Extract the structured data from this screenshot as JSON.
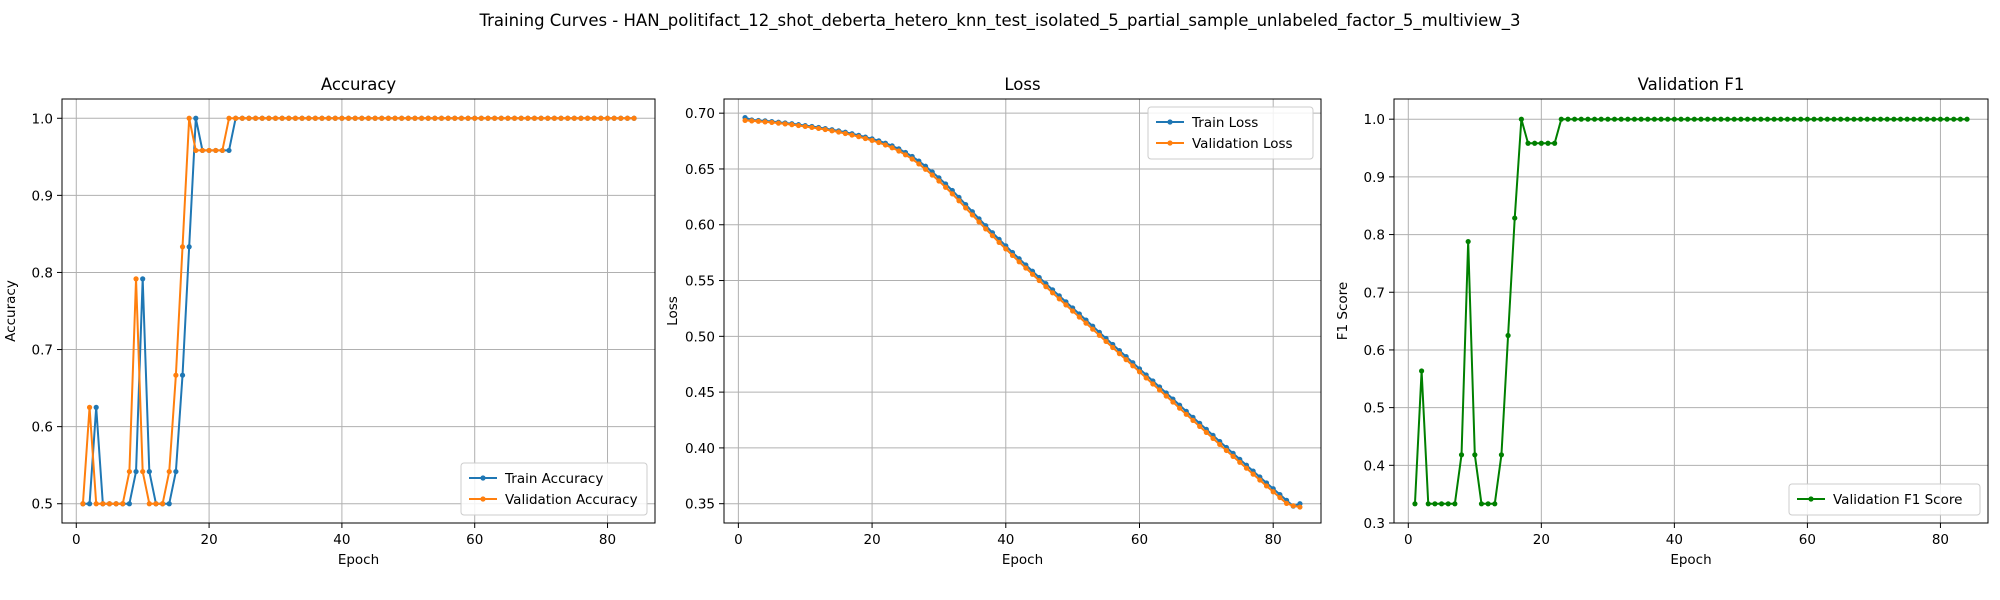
{
  "figure": {
    "suptitle": "Training Curves - HAN_politifact_12_shot_deberta_hetero_knn_test_isolated_5_partial_sample_unlabeled_factor_5_multiview_3"
  },
  "colors": {
    "blue": "#1f77b4",
    "orange": "#ff7f0e",
    "green": "#008000",
    "grid": "#b0b0b0"
  },
  "chart_data": [
    {
      "type": "line",
      "title": "Accuracy",
      "xlabel": "Epoch",
      "ylabel": "Accuracy",
      "xlim": [
        -2.15,
        87.15
      ],
      "ylim": [
        0.475,
        1.025
      ],
      "xticks": [
        0,
        20,
        40,
        60,
        80
      ],
      "yticks": [
        0.5,
        0.6,
        0.7,
        0.8,
        0.9,
        1.0
      ],
      "ytick_labels": [
        "0.5",
        "0.6",
        "0.7",
        "0.8",
        "0.9",
        "1.0"
      ],
      "grid": true,
      "legend_position": "lower-right",
      "series": [
        {
          "name": "Train Accuracy",
          "color": "#1f77b4",
          "values": [
            0.5,
            0.5,
            0.625,
            0.5,
            0.5,
            0.5,
            0.5,
            0.5,
            0.5417,
            0.7917,
            0.5417,
            0.5,
            0.5,
            0.5,
            0.5417,
            0.6667,
            0.8333,
            1.0,
            0.9583,
            0.9583,
            0.9583,
            0.9583,
            0.9583,
            1.0,
            1.0,
            1.0,
            1.0,
            1.0,
            1.0,
            1.0,
            1.0,
            1.0,
            1.0,
            1.0,
            1.0,
            1.0,
            1.0,
            1.0,
            1.0,
            1.0,
            1.0,
            1.0,
            1.0,
            1.0,
            1.0,
            1.0,
            1.0,
            1.0,
            1.0,
            1.0,
            1.0,
            1.0,
            1.0,
            1.0,
            1.0,
            1.0,
            1.0,
            1.0,
            1.0,
            1.0,
            1.0,
            1.0,
            1.0,
            1.0,
            1.0,
            1.0,
            1.0,
            1.0,
            1.0,
            1.0,
            1.0,
            1.0,
            1.0,
            1.0,
            1.0,
            1.0,
            1.0,
            1.0,
            1.0,
            1.0,
            1.0,
            1.0,
            1.0,
            1.0
          ]
        },
        {
          "name": "Validation Accuracy",
          "color": "#ff7f0e",
          "values": [
            0.5,
            0.625,
            0.5,
            0.5,
            0.5,
            0.5,
            0.5,
            0.5417,
            0.7917,
            0.5417,
            0.5,
            0.5,
            0.5,
            0.5417,
            0.6667,
            0.8333,
            1.0,
            0.9583,
            0.9583,
            0.9583,
            0.9583,
            0.9583,
            1.0,
            1.0,
            1.0,
            1.0,
            1.0,
            1.0,
            1.0,
            1.0,
            1.0,
            1.0,
            1.0,
            1.0,
            1.0,
            1.0,
            1.0,
            1.0,
            1.0,
            1.0,
            1.0,
            1.0,
            1.0,
            1.0,
            1.0,
            1.0,
            1.0,
            1.0,
            1.0,
            1.0,
            1.0,
            1.0,
            1.0,
            1.0,
            1.0,
            1.0,
            1.0,
            1.0,
            1.0,
            1.0,
            1.0,
            1.0,
            1.0,
            1.0,
            1.0,
            1.0,
            1.0,
            1.0,
            1.0,
            1.0,
            1.0,
            1.0,
            1.0,
            1.0,
            1.0,
            1.0,
            1.0,
            1.0,
            1.0,
            1.0,
            1.0,
            1.0,
            1.0,
            1.0
          ]
        }
      ]
    },
    {
      "type": "line",
      "title": "Loss",
      "xlabel": "Epoch",
      "ylabel": "Loss",
      "xlim": [
        -2.15,
        87.15
      ],
      "ylim": [
        0.3327,
        0.7127
      ],
      "xticks": [
        0,
        20,
        40,
        60,
        80
      ],
      "yticks": [
        0.35,
        0.4,
        0.45,
        0.5,
        0.55,
        0.6,
        0.65,
        0.7
      ],
      "ytick_labels": [
        "0.35",
        "0.40",
        "0.45",
        "0.50",
        "0.55",
        "0.60",
        "0.65",
        "0.70"
      ],
      "grid": true,
      "legend_position": "upper-right",
      "series": [
        {
          "name": "Train Loss",
          "color": "#1f77b4",
          "values": [
            0.696,
            0.6939,
            0.6935,
            0.6931,
            0.6925,
            0.6919,
            0.6912,
            0.6905,
            0.6897,
            0.6889,
            0.6881,
            0.6872,
            0.6862,
            0.6852,
            0.6841,
            0.6829,
            0.6816,
            0.6801,
            0.6786,
            0.677,
            0.6752,
            0.6731,
            0.6707,
            0.668,
            0.6648,
            0.6612,
            0.657,
            0.6524,
            0.6473,
            0.642,
            0.6365,
            0.6307,
            0.6245,
            0.6181,
            0.6117,
            0.6053,
            0.5991,
            0.5929,
            0.5869,
            0.5811,
            0.5752,
            0.5695,
            0.5639,
            0.5583,
            0.5527,
            0.5472,
            0.5417,
            0.5363,
            0.5309,
            0.5254,
            0.52,
            0.5145,
            0.5091,
            0.5036,
            0.4981,
            0.4927,
            0.4872,
            0.4818,
            0.4763,
            0.4709,
            0.4654,
            0.46,
            0.4546,
            0.4492,
            0.4438,
            0.4383,
            0.4328,
            0.4274,
            0.422,
            0.4166,
            0.4112,
            0.4058,
            0.4004,
            0.3951,
            0.3898,
            0.3845,
            0.3792,
            0.3739,
            0.3686,
            0.3634,
            0.3582,
            0.353,
            0.3478,
            0.35
          ]
        },
        {
          "name": "Validation Loss",
          "color": "#ff7f0e",
          "values": [
            0.6935,
            0.6931,
            0.6927,
            0.6922,
            0.6917,
            0.6911,
            0.6904,
            0.6897,
            0.6889,
            0.6881,
            0.6872,
            0.6863,
            0.6853,
            0.6842,
            0.6831,
            0.6818,
            0.6804,
            0.6789,
            0.6773,
            0.6756,
            0.6737,
            0.6715,
            0.669,
            0.6661,
            0.6627,
            0.6589,
            0.6545,
            0.6497,
            0.6446,
            0.6392,
            0.6336,
            0.6277,
            0.6215,
            0.6151,
            0.6088,
            0.6025,
            0.5963,
            0.5902,
            0.5842,
            0.5784,
            0.5725,
            0.5668,
            0.5612,
            0.5556,
            0.55,
            0.5445,
            0.539,
            0.5336,
            0.5282,
            0.5227,
            0.5173,
            0.5118,
            0.5064,
            0.5009,
            0.4954,
            0.49,
            0.4845,
            0.4791,
            0.4736,
            0.4682,
            0.4627,
            0.4573,
            0.4519,
            0.4465,
            0.4411,
            0.4356,
            0.4301,
            0.4247,
            0.4193,
            0.4139,
            0.4085,
            0.4031,
            0.3977,
            0.3924,
            0.3871,
            0.3818,
            0.3765,
            0.3712,
            0.3659,
            0.3607,
            0.3555,
            0.3503,
            0.3481,
            0.347
          ]
        }
      ]
    },
    {
      "type": "line",
      "title": "Validation F1",
      "xlabel": "Epoch",
      "ylabel": "F1 Score",
      "xlim": [
        -2.15,
        87.15
      ],
      "ylim": [
        0.3,
        1.035
      ],
      "xticks": [
        0,
        20,
        40,
        60,
        80
      ],
      "yticks": [
        0.3,
        0.4,
        0.5,
        0.6,
        0.7,
        0.8,
        0.9,
        1.0
      ],
      "ytick_labels": [
        "0.3",
        "0.4",
        "0.5",
        "0.6",
        "0.7",
        "0.8",
        "0.9",
        "1.0"
      ],
      "grid": true,
      "legend_position": "lower-right",
      "series": [
        {
          "name": "Validation F1 Score",
          "color": "#008000",
          "values": [
            0.3333,
            0.5636,
            0.3333,
            0.3333,
            0.3333,
            0.3333,
            0.3333,
            0.4182,
            0.7879,
            0.4182,
            0.3333,
            0.3333,
            0.3333,
            0.4182,
            0.625,
            0.8286,
            1.0,
            0.9583,
            0.9583,
            0.9583,
            0.9583,
            0.9583,
            1.0,
            1.0,
            1.0,
            1.0,
            1.0,
            1.0,
            1.0,
            1.0,
            1.0,
            1.0,
            1.0,
            1.0,
            1.0,
            1.0,
            1.0,
            1.0,
            1.0,
            1.0,
            1.0,
            1.0,
            1.0,
            1.0,
            1.0,
            1.0,
            1.0,
            1.0,
            1.0,
            1.0,
            1.0,
            1.0,
            1.0,
            1.0,
            1.0,
            1.0,
            1.0,
            1.0,
            1.0,
            1.0,
            1.0,
            1.0,
            1.0,
            1.0,
            1.0,
            1.0,
            1.0,
            1.0,
            1.0,
            1.0,
            1.0,
            1.0,
            1.0,
            1.0,
            1.0,
            1.0,
            1.0,
            1.0,
            1.0,
            1.0,
            1.0,
            1.0,
            1.0,
            1.0
          ]
        }
      ]
    }
  ]
}
